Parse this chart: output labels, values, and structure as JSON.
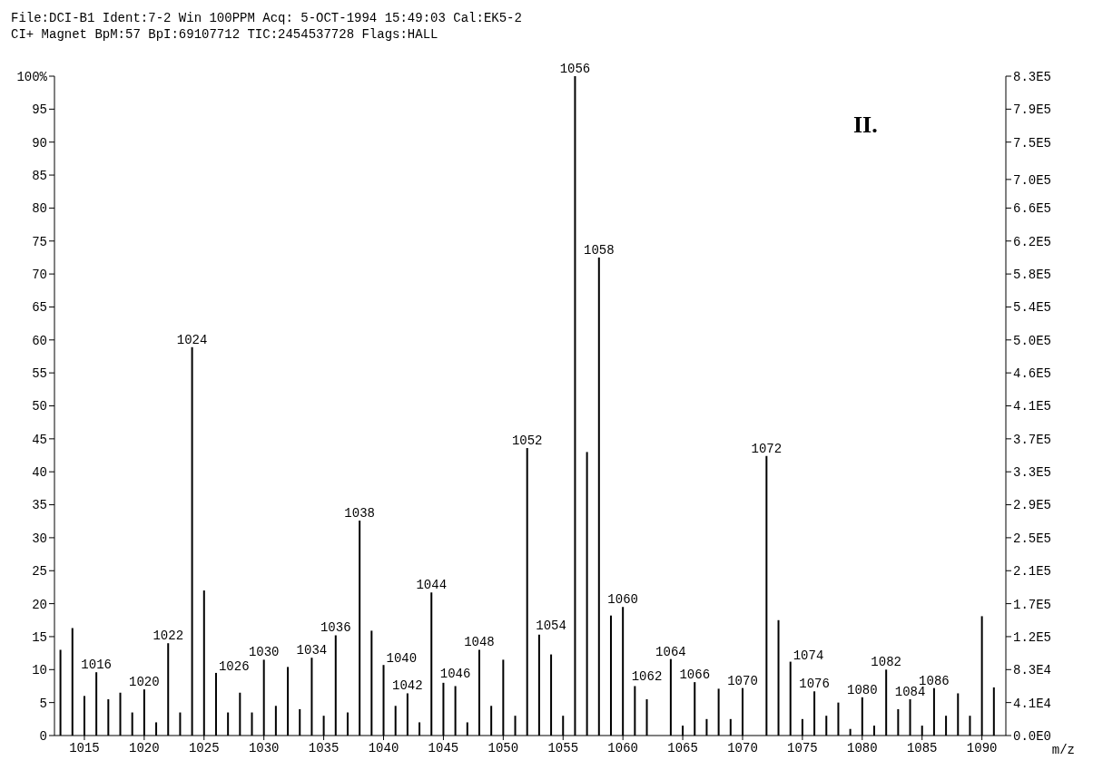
{
  "chart_data": {
    "type": "bar",
    "title": "File:DCI-B1 Ident:7-2 Win 100PPM Acq: 5-OCT-1994 15:49:03 Cal:EK5-2",
    "subtitle": "CI+ Magnet BpM:57 BpI:69107712 TIC:2454537728 Flags:HALL",
    "xlabel": "m/z",
    "color": "#000000",
    "x": [
      1013,
      1014,
      1015,
      1016,
      1017,
      1018,
      1019,
      1020,
      1021,
      1022,
      1023,
      1024,
      1025,
      1026,
      1027,
      1028,
      1029,
      1030,
      1031,
      1032,
      1033,
      1034,
      1035,
      1036,
      1037,
      1038,
      1039,
      1040,
      1041,
      1042,
      1043,
      1044,
      1045,
      1046,
      1047,
      1048,
      1049,
      1050,
      1051,
      1052,
      1053,
      1054,
      1055,
      1056,
      1057,
      1058,
      1059,
      1060,
      1061,
      1062,
      1064,
      1065,
      1066,
      1067,
      1068,
      1069,
      1070,
      1072,
      1073,
      1074,
      1075,
      1076,
      1077,
      1078,
      1079,
      1080,
      1081,
      1082,
      1083,
      1084,
      1085,
      1086,
      1087,
      1088,
      1089,
      1090,
      1091
    ],
    "values": [
      13,
      16.3,
      6,
      9.6,
      5.5,
      6.5,
      3.5,
      7,
      2,
      14,
      3.5,
      58.9,
      22,
      9.5,
      3.5,
      6.5,
      3.5,
      11.5,
      4.5,
      10.4,
      4,
      11.8,
      3,
      15.2,
      3.5,
      32.6,
      15.9,
      10.7,
      4.5,
      6.4,
      2,
      21.7,
      8,
      7.5,
      2,
      13,
      4.5,
      11.5,
      3,
      43.6,
      15.3,
      12.3,
      3,
      100,
      43,
      72.5,
      18.2,
      19.5,
      7.5,
      5.5,
      11.6,
      1.5,
      8.1,
      2.5,
      7.1,
      2.5,
      7.2,
      42.4,
      17.5,
      11.2,
      2.5,
      6.7,
      3,
      5,
      1,
      5.8,
      1.5,
      10,
      4,
      5.5,
      1.5,
      7.2,
      3,
      6.4,
      3,
      18.1,
      7.3
    ],
    "xlim": [
      1012.5,
      1092
    ],
    "xticks": [
      1015,
      1020,
      1025,
      1030,
      1035,
      1040,
      1045,
      1050,
      1055,
      1060,
      1065,
      1070,
      1075,
      1080,
      1085,
      1090
    ],
    "ylim": [
      0,
      100
    ],
    "yticks": [
      0,
      5,
      10,
      15,
      20,
      25,
      30,
      35,
      40,
      45,
      50,
      55,
      60,
      65,
      70,
      75,
      80,
      85,
      90,
      95,
      {
        "value": 100,
        "label": "100%"
      }
    ],
    "y2lim": [
      0,
      830000
    ],
    "y2ticks": [
      {
        "value": 0,
        "label": "0.0E0"
      },
      {
        "value": 41500,
        "label": "4.1E4"
      },
      {
        "value": 83000,
        "label": "8.3E4"
      },
      {
        "value": 124500,
        "label": "1.2E5"
      },
      {
        "value": 166000,
        "label": "1.7E5"
      },
      {
        "value": 207500,
        "label": "2.1E5"
      },
      {
        "value": 249000,
        "label": "2.5E5"
      },
      {
        "value": 290500,
        "label": "2.9E5"
      },
      {
        "value": 332000,
        "label": "3.3E5"
      },
      {
        "value": 373500,
        "label": "3.7E5"
      },
      {
        "value": 415000,
        "label": "4.1E5"
      },
      {
        "value": 456500,
        "label": "4.6E5"
      },
      {
        "value": 498000,
        "label": "5.0E5"
      },
      {
        "value": 539500,
        "label": "5.4E5"
      },
      {
        "value": 581000,
        "label": "5.8E5"
      },
      {
        "value": 622500,
        "label": "6.2E5"
      },
      {
        "value": 664000,
        "label": "6.6E5"
      },
      {
        "value": 700000,
        "label": "7.0E5"
      },
      {
        "value": 747000,
        "label": "7.5E5"
      },
      {
        "value": 788500,
        "label": "7.9E5"
      },
      {
        "value": 830000,
        "label": "8.3E5"
      }
    ],
    "annotations": [
      "II.",
      {
        "text": "1016",
        "x": 1016,
        "y": 9.6
      },
      {
        "text": "1020",
        "x": 1020,
        "y": 7
      },
      {
        "text": "1022",
        "x": 1022,
        "y": 14
      },
      {
        "text": "1024",
        "x": 1024,
        "y": 58.9
      },
      {
        "text": "1026",
        "x": 1026,
        "y": 9.5
      },
      {
        "text": "1030",
        "x": 1030,
        "y": 11.5
      },
      {
        "text": "1034",
        "x": 1034,
        "y": 11.8
      },
      {
        "text": "1036",
        "x": 1036,
        "y": 15.2
      },
      {
        "text": "1038",
        "x": 1038,
        "y": 32.6
      },
      {
        "text": "1040",
        "x": 1040,
        "y": 10.7
      },
      {
        "text": "1042",
        "x": 1042,
        "y": 6.4
      },
      {
        "text": "1044",
        "x": 1044,
        "y": 21.7
      },
      {
        "text": "1046",
        "x": 1046,
        "y": 7.5
      },
      {
        "text": "1048",
        "x": 1048,
        "y": 13
      },
      {
        "text": "1052",
        "x": 1052,
        "y": 43.6
      },
      {
        "text": "1054",
        "x": 1054,
        "y": 12.3
      },
      {
        "text": "1056",
        "x": 1056,
        "y": 100
      },
      {
        "text": "1058",
        "x": 1058,
        "y": 72.5
      },
      {
        "text": "1060",
        "x": 1060,
        "y": 19.5
      },
      {
        "text": "1062",
        "x": 1062,
        "y": 5.5
      },
      {
        "text": "1064",
        "x": 1064,
        "y": 11.6
      },
      {
        "text": "1066",
        "x": 1066,
        "y": 8.1
      },
      {
        "text": "1070",
        "x": 1070,
        "y": 7.2
      },
      {
        "text": "1072",
        "x": 1072,
        "y": 42.4
      },
      {
        "text": "1074",
        "x": 1074,
        "y": 11.2
      },
      {
        "text": "1076",
        "x": 1076,
        "y": 6.7
      },
      {
        "text": "1080",
        "x": 1080,
        "y": 5.8
      },
      {
        "text": "1082",
        "x": 1082,
        "y": 10
      },
      {
        "text": "1084",
        "x": 1084,
        "y": 5.5
      },
      {
        "text": "1086",
        "x": 1086,
        "y": 7.2
      }
    ]
  }
}
